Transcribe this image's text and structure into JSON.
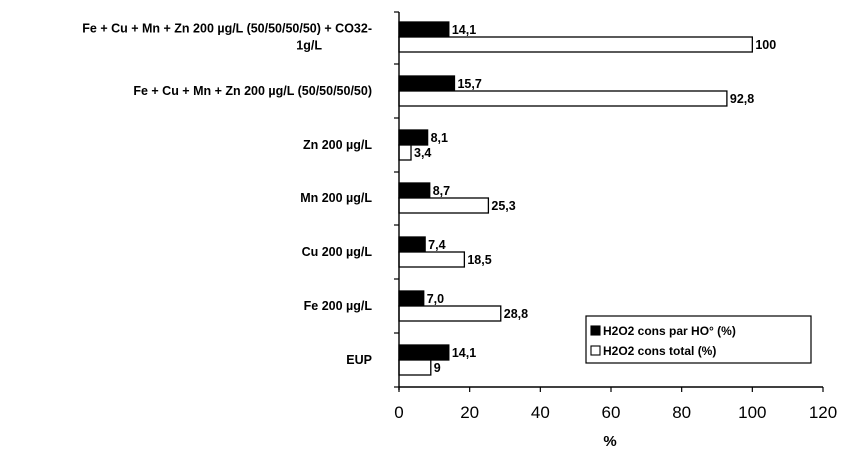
{
  "chart_data": {
    "type": "bar",
    "orientation": "horizontal",
    "categories": [
      [
        "Fe + Cu + Mn + Zn 200 µg/L (50/50/50/50) + CO32-",
        "1g/L"
      ],
      [
        "Fe + Cu + Mn + Zn 200 µg/L (50/50/50/50)"
      ],
      [
        "Zn 200 µg/L"
      ],
      [
        "Mn 200 µg/L"
      ],
      [
        "Cu 200 µg/L"
      ],
      [
        "Fe 200 µg/L"
      ],
      [
        "EUP"
      ]
    ],
    "series": [
      {
        "name": "H2O2 cons par HO° (%)",
        "color": "#000000",
        "values": [
          14.1,
          15.7,
          8.1,
          8.7,
          7.4,
          7.0,
          14.1
        ],
        "labels": [
          "14,1",
          "15,7",
          "8,1",
          "8,7",
          "7,4",
          "7,0",
          "14,1"
        ]
      },
      {
        "name": "H2O2 cons total (%)",
        "color": "#ffffff",
        "values": [
          100,
          92.8,
          3.4,
          25.3,
          18.5,
          28.8,
          9
        ],
        "labels": [
          "100",
          "92,8",
          "3,4",
          "25,3",
          "18,5",
          "28,8",
          "9"
        ]
      }
    ],
    "xlabel": "%",
    "xlim": [
      0,
      120
    ],
    "xticks": [
      "0",
      "20",
      "40",
      "60",
      "80",
      "100",
      "120"
    ],
    "grid": false,
    "legend_position": "bottom-right"
  }
}
